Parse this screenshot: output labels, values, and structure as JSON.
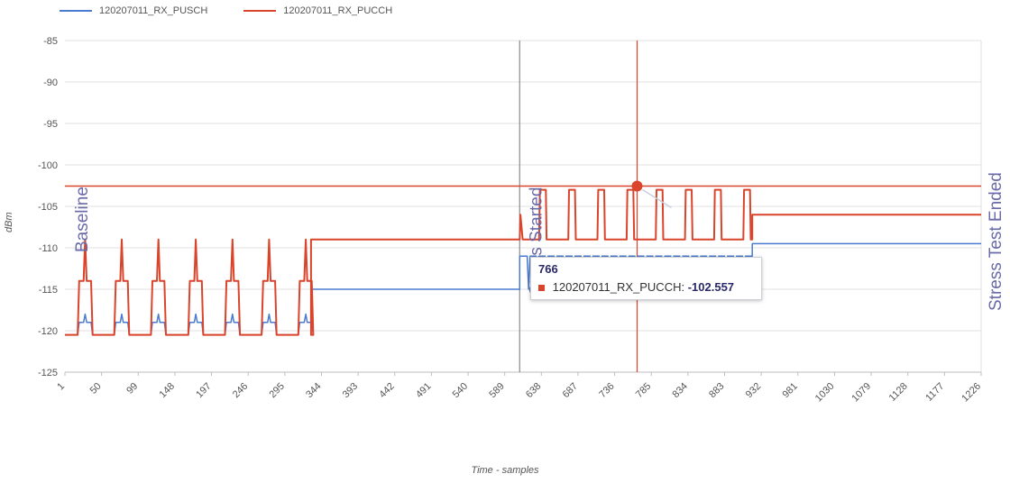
{
  "legend": [
    {
      "label": "120207011_RX_PUSCH",
      "color": "#4a7bd0"
    },
    {
      "label": "120207011_RX_PUCCH",
      "color": "#d9442b"
    }
  ],
  "tooltip": {
    "x_label": "766",
    "series_label": "120207011_RX_PUCCH:",
    "value_label": "-102.557"
  },
  "chart_data": {
    "type": "line",
    "xlabel": "Time - samples",
    "ylabel": "dBm",
    "xlim": [
      1,
      1226
    ],
    "ylim": [
      -125,
      -85
    ],
    "y_ticks": [
      -85,
      -90,
      -95,
      -100,
      -105,
      -110,
      -115,
      -120,
      -125
    ],
    "x_ticks": [
      1,
      50,
      99,
      148,
      197,
      246,
      295,
      344,
      393,
      442,
      491,
      540,
      589,
      638,
      687,
      736,
      785,
      834,
      883,
      932,
      981,
      1030,
      1079,
      1128,
      1177,
      1226
    ],
    "grid": true,
    "legend_position": "top-left",
    "annotations": [
      {
        "text": "Baseline",
        "x": 1,
        "color": "#6a6aa8"
      },
      {
        "text": "Stress Started",
        "x": 609,
        "color": "#6a6aa8"
      },
      {
        "text": "Stress Test Ended",
        "x": 1226,
        "color": "#6a6aa8"
      }
    ],
    "vertical_lines": [
      {
        "x": 609,
        "color": "#8a8a8a"
      },
      {
        "x": 766,
        "color": "#d9442b"
      }
    ],
    "horizontal_lines": [
      {
        "y": -102.557,
        "color": "#d9442b"
      }
    ],
    "highlight_point": {
      "series": "120207011_RX_PUCCH",
      "x": 766,
      "y": -102.557
    },
    "series": [
      {
        "name": "120207011_RX_PUSCH",
        "color": "#4a7bd0",
        "segments": [
          {
            "pattern": "spikes",
            "x_start": 1,
            "x_end": 330,
            "base": -120.5,
            "shoulder": -119,
            "peak": -118,
            "spike_xs": [
              28,
              77,
              126,
              176,
              225,
              274,
              323
            ]
          },
          {
            "pattern": "flat",
            "x_start": 330,
            "x_end": 609,
            "y": -115
          },
          {
            "pattern": "dips",
            "x_start": 609,
            "x_end": 920,
            "base": -111,
            "trough": -115,
            "step": 12
          },
          {
            "pattern": "flat",
            "x_start": 920,
            "x_end": 1226,
            "y": -109.5
          }
        ]
      },
      {
        "name": "120207011_RX_PUCCH",
        "color": "#d9442b",
        "segments": [
          {
            "pattern": "spikes",
            "x_start": 1,
            "x_end": 330,
            "base": -120.5,
            "shoulder": -114,
            "peak": -109,
            "spike_xs": [
              28,
              77,
              126,
              176,
              225,
              274,
              323
            ]
          },
          {
            "pattern": "flat",
            "x_start": 330,
            "x_end": 609,
            "y": -109
          },
          {
            "pattern": "pulses",
            "x_start": 609,
            "x_end": 920,
            "base": -109,
            "peak": -103,
            "start_spike": -106,
            "pulse_xs": [
              640,
              679,
              718,
              757,
              796,
              835,
              874,
              913
            ]
          },
          {
            "pattern": "flat",
            "x_start": 920,
            "x_end": 1226,
            "y": -106
          }
        ]
      }
    ]
  }
}
